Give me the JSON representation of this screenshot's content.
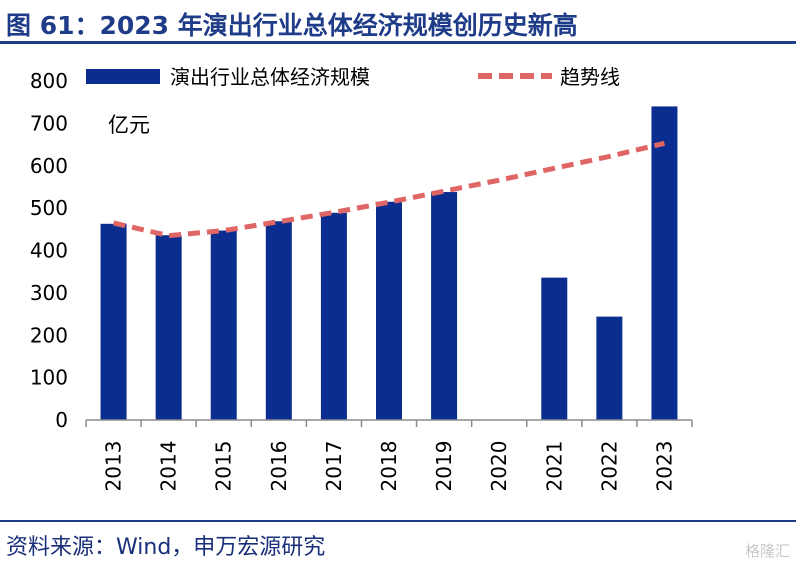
{
  "header": {
    "title": "图 61：2023 年演出行业总体经济规模创历史新高"
  },
  "footer": {
    "source": "资料来源：Wind，申万宏源研究",
    "watermark": "格隆汇"
  },
  "chart_data": {
    "type": "bar",
    "categories": [
      "2013",
      "2014",
      "2015",
      "2016",
      "2017",
      "2018",
      "2019",
      "2020",
      "2021",
      "2022",
      "2023"
    ],
    "series": [
      {
        "name": "演出行业总体经济规模",
        "type": "bar",
        "color": "#0b2d8f",
        "values": [
          463,
          436,
          447,
          469,
          489,
          515,
          538,
          null,
          336,
          244,
          740
        ]
      },
      {
        "name": "趋势线",
        "type": "line",
        "style": "dashed",
        "color": "#e06666",
        "values": [
          465,
          435,
          447,
          468,
          490,
          514,
          540,
          566,
          594,
          622,
          653
        ]
      }
    ],
    "unit_label": "亿元",
    "ylim": [
      0,
      800
    ],
    "yticks": [
      0,
      100,
      200,
      300,
      400,
      500,
      600,
      700,
      800
    ],
    "grid": false,
    "legend_position": "top"
  }
}
